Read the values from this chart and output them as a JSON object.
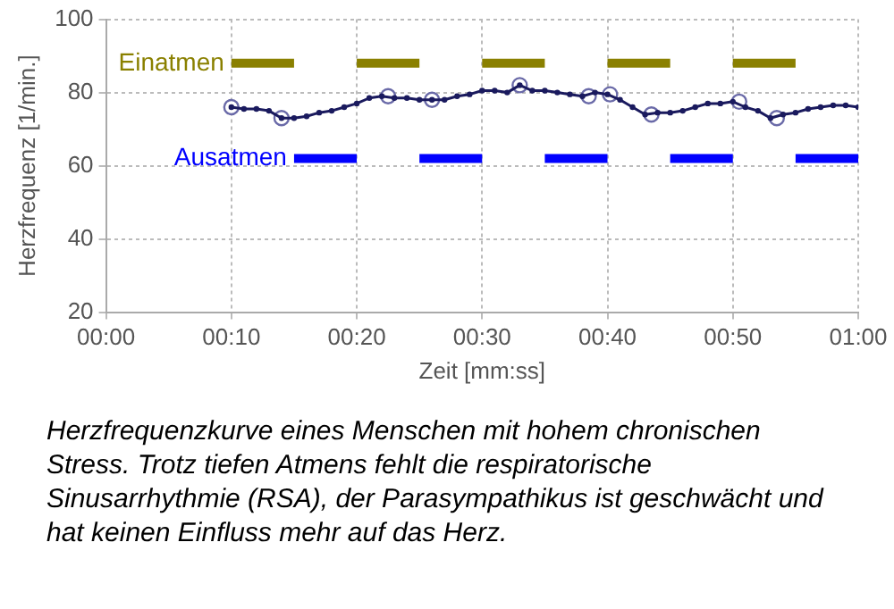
{
  "chart_data": {
    "type": "line",
    "xlabel": "Zeit [mm:ss]",
    "ylabel": "Herzfrequenz [1/min.]",
    "xlim": [
      0,
      60
    ],
    "ylim": [
      20,
      100
    ],
    "xticks": [
      {
        "value": 0,
        "label": "00:00"
      },
      {
        "value": 10,
        "label": "00:10"
      },
      {
        "value": 20,
        "label": "00:20"
      },
      {
        "value": 30,
        "label": "00:30"
      },
      {
        "value": 40,
        "label": "00:40"
      },
      {
        "value": 50,
        "label": "00:50"
      },
      {
        "value": 60,
        "label": "01:00"
      }
    ],
    "yticks": [
      20,
      40,
      60,
      80,
      100
    ],
    "grid": true,
    "legend": false,
    "series": [
      {
        "name": "Einatmen",
        "color": "#8a8000",
        "marker": "none",
        "x": [
          10,
          15
        ],
        "values": [
          88,
          88
        ]
      },
      {
        "color": "#8a8000",
        "marker": "none",
        "x": [
          20,
          25
        ],
        "values": [
          88,
          88
        ]
      },
      {
        "color": "#8a8000",
        "marker": "none",
        "x": [
          30,
          35
        ],
        "values": [
          88,
          88
        ]
      },
      {
        "color": "#8a8000",
        "marker": "none",
        "x": [
          40,
          45
        ],
        "values": [
          88,
          88
        ]
      },
      {
        "color": "#8a8000",
        "marker": "none",
        "x": [
          50,
          55
        ],
        "values": [
          88,
          88
        ]
      },
      {
        "name": "Ausatmen",
        "color": "#0000ff",
        "marker": "none",
        "x": [
          15,
          20
        ],
        "values": [
          62,
          62
        ]
      },
      {
        "color": "#0000ff",
        "marker": "none",
        "x": [
          25,
          30
        ],
        "values": [
          62,
          62
        ]
      },
      {
        "color": "#0000ff",
        "marker": "none",
        "x": [
          35,
          40
        ],
        "values": [
          62,
          62
        ]
      },
      {
        "color": "#0000ff",
        "marker": "none",
        "x": [
          45,
          50
        ],
        "values": [
          62,
          62
        ]
      },
      {
        "color": "#0000ff",
        "marker": "none",
        "x": [
          55,
          60
        ],
        "values": [
          62,
          62
        ]
      },
      {
        "color": "#1a1a5e",
        "marker": "circle",
        "x": [
          10,
          11,
          12,
          13,
          14,
          15,
          16,
          17,
          18,
          19,
          20,
          21,
          22,
          23,
          24,
          25,
          26,
          27,
          28,
          29,
          30,
          31,
          32,
          33,
          34,
          35,
          36,
          37,
          38,
          39,
          40,
          41,
          42,
          43,
          44,
          45,
          46,
          47,
          48,
          49,
          50,
          51,
          52,
          53,
          54,
          55,
          56,
          57,
          58,
          59,
          60
        ],
        "values": [
          76,
          75.5,
          75.5,
          75,
          73,
          73,
          73.5,
          74.5,
          75,
          76,
          77,
          78.5,
          79,
          78.5,
          78.5,
          78,
          78,
          78,
          79,
          79.5,
          80.5,
          80.5,
          80,
          82,
          80.5,
          80.5,
          80,
          79.5,
          79,
          80,
          79.5,
          78,
          76,
          74,
          74.5,
          74.5,
          75,
          76,
          77,
          77,
          77.5,
          76,
          75,
          73,
          74,
          74.5,
          75.5,
          76,
          76.5,
          76.5,
          76
        ]
      },
      {
        "color": "#6a6aa8",
        "type": "scatter",
        "marker": "circle",
        "x": [
          10,
          14,
          22.5,
          26,
          33,
          38.5,
          40.2,
          43.5,
          50.5,
          53.5
        ],
        "values": [
          76,
          73,
          79,
          78,
          82,
          79,
          79.5,
          74,
          77.5,
          73
        ]
      }
    ],
    "annotations": [
      "Herzfrequenzkurve eines Menschen mit hohem chronischen Stress. Trotz tiefen Atmens fehlt die respiratorische Sinusarrhythmie (RSA), der Parasympathikus ist geschwächt und hat keinen Einfluss mehr auf das Herz."
    ]
  }
}
